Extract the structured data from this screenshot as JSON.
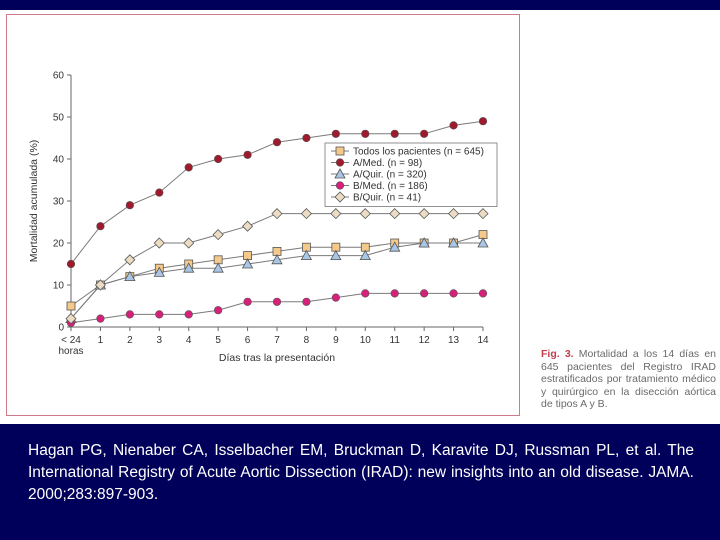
{
  "chart_data": {
    "type": "line",
    "xlabel": "Días tras la presentación",
    "ylabel": "Mortalidad acumulada (%)",
    "categories": [
      "< 24 horas",
      "1",
      "2",
      "3",
      "4",
      "5",
      "6",
      "7",
      "8",
      "9",
      "10",
      "11",
      "12",
      "13",
      "14"
    ],
    "yticks": [
      "0",
      "10",
      "20",
      "30",
      "40",
      "50",
      "60"
    ],
    "ylim": [
      0,
      60
    ],
    "grid": false,
    "legend_position": "right",
    "series": [
      {
        "name": "Todos los pacientes (n = 645)",
        "marker": "square",
        "color": "#f5c98a",
        "values": [
          5,
          10,
          12,
          14,
          15,
          16,
          17,
          18,
          19,
          19,
          19,
          20,
          20,
          20,
          22
        ]
      },
      {
        "name": "A/Med. (n = 98)",
        "marker": "circle",
        "color": "#9e1a2c",
        "values": [
          15,
          24,
          29,
          32,
          38,
          40,
          41,
          44,
          45,
          46,
          46,
          46,
          46,
          48,
          49
        ]
      },
      {
        "name": "A/Quir. (n = 320)",
        "marker": "triangle",
        "color": "#a9c6e6",
        "values": [
          2,
          10,
          12,
          13,
          14,
          14,
          15,
          16,
          17,
          17,
          17,
          19,
          20,
          20,
          20
        ]
      },
      {
        "name": "B/Med. (n = 186)",
        "marker": "circle",
        "color": "#d6207a",
        "values": [
          1,
          2,
          3,
          3,
          3,
          4,
          6,
          6,
          6,
          7,
          8,
          8,
          8,
          8,
          8
        ]
      },
      {
        "name": "B/Quir. (n = 41)",
        "marker": "diamond",
        "color": "#ecdcc4",
        "values": [
          2,
          10,
          16,
          20,
          20,
          22,
          24,
          27,
          27,
          27,
          27,
          27,
          27,
          27,
          27
        ]
      }
    ]
  },
  "caption": {
    "label": "Fig. 3.",
    "text": "Mortalidad a los 14 días en 645 pacientes del Registro IRAD estratificados por tratamiento médico y quirúrgico en la disección aórtica de tipos A y B."
  },
  "citation": "Hagan PG, Nienaber CA, Isselbacher EM, Bruckman D, Karavite DJ, Russman PL, et al. The International Registry of Acute Aortic Dissection (IRAD): new insights into an old disease. JAMA. 2000;283:897-903."
}
